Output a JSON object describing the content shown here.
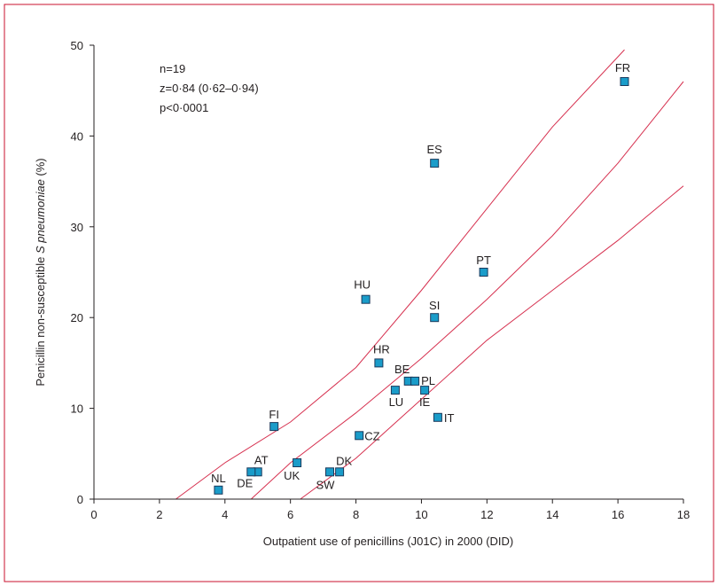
{
  "colors": {
    "frame": "#c8102e",
    "marker_fill": "#1a9cc9",
    "marker_stroke": "#1b3a5c",
    "fit_line": "#d6304f",
    "axis": "#231f20"
  },
  "chart_data": {
    "type": "scatter",
    "xlabel": "Outpatient use of penicillins (J01C) in 2000 (DID)",
    "ylabel_plain": "Penicillin non-susceptible ",
    "ylabel_italic": "S pneumoniae",
    "ylabel_suffix": " (%)",
    "xlim": [
      0,
      18
    ],
    "ylim": [
      0,
      50
    ],
    "xticks": [
      0,
      2,
      4,
      6,
      8,
      10,
      12,
      14,
      16,
      18
    ],
    "yticks": [
      0,
      10,
      20,
      30,
      40,
      50
    ],
    "stats": [
      "n=19",
      "z=0·84 (0·62–0·94)",
      "p<0·0001"
    ],
    "points": [
      {
        "label": "FR",
        "x": 16.2,
        "y": 46
      },
      {
        "label": "ES",
        "x": 10.4,
        "y": 37
      },
      {
        "label": "PT",
        "x": 11.9,
        "y": 25
      },
      {
        "label": "HU",
        "x": 8.3,
        "y": 22
      },
      {
        "label": "SI",
        "x": 10.4,
        "y": 20
      },
      {
        "label": "HR",
        "x": 8.7,
        "y": 15
      },
      {
        "label": "BE",
        "x": 9.6,
        "y": 13
      },
      {
        "label": "PL",
        "x": 9.8,
        "y": 13
      },
      {
        "label": "LU",
        "x": 9.2,
        "y": 12
      },
      {
        "label": "IE",
        "x": 10.1,
        "y": 12
      },
      {
        "label": "IT",
        "x": 10.5,
        "y": 9
      },
      {
        "label": "FI",
        "x": 5.5,
        "y": 8
      },
      {
        "label": "CZ",
        "x": 8.1,
        "y": 7
      },
      {
        "label": "UK",
        "x": 6.2,
        "y": 4
      },
      {
        "label": "AT",
        "x": 5.0,
        "y": 3
      },
      {
        "label": "DE",
        "x": 4.8,
        "y": 3
      },
      {
        "label": "DK",
        "x": 7.5,
        "y": 3
      },
      {
        "label": "SW",
        "x": 7.2,
        "y": 3
      },
      {
        "label": "NL",
        "x": 3.8,
        "y": 1
      }
    ],
    "fit_lines": [
      {
        "role": "upper-ci",
        "x": [
          2.5,
          4,
          6,
          8,
          10,
          12,
          14,
          16.2
        ],
        "y": [
          0,
          4,
          8.5,
          14.5,
          23,
          32,
          41,
          49.5
        ]
      },
      {
        "role": "fit",
        "x": [
          4.8,
          6,
          8,
          10,
          12,
          14,
          16,
          18
        ],
        "y": [
          0,
          4,
          9.5,
          15.5,
          22,
          29,
          37,
          46
        ]
      },
      {
        "role": "lower-ci",
        "x": [
          6.3,
          8,
          10,
          12,
          14,
          16,
          18
        ],
        "y": [
          0,
          4.5,
          11,
          17.5,
          23,
          28.5,
          34.5
        ]
      }
    ]
  }
}
